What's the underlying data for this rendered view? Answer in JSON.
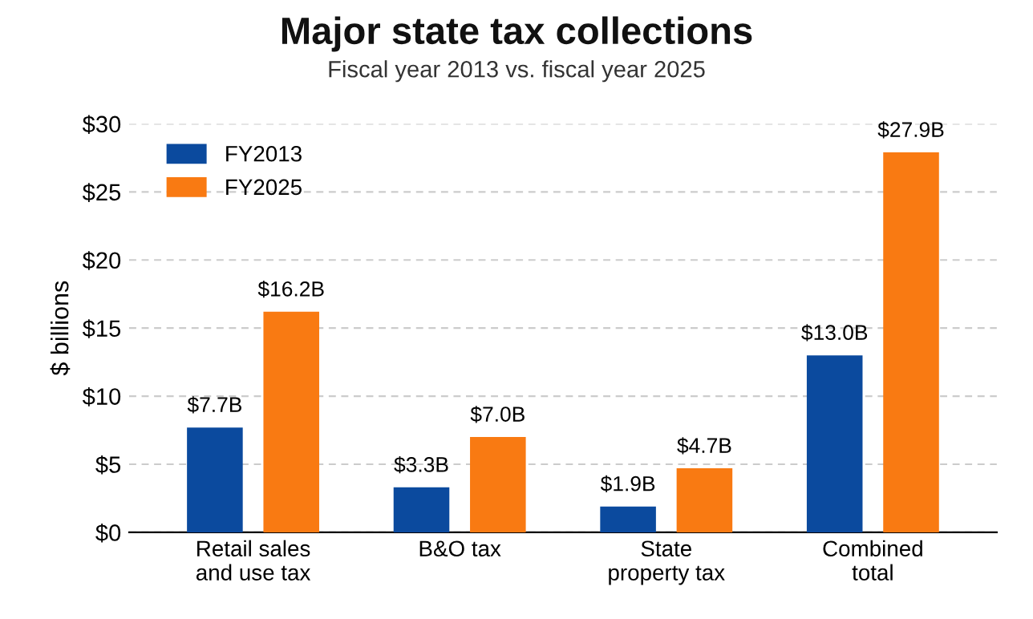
{
  "chart_data": {
    "type": "bar",
    "title": "Major state tax collections",
    "subtitle": "Fiscal year 2013 vs. fiscal year 2025",
    "ylabel": "$ billions",
    "categories": [
      "Retail sales\nand use tax",
      "B&O tax",
      "State\nproperty tax",
      "Combined\ntotal"
    ],
    "series": [
      {
        "name": "FY2013",
        "color": "#0b4a9e",
        "values": [
          7.7,
          3.3,
          1.9,
          13.0
        ],
        "value_labels": [
          "$7.7B",
          "$3.3B",
          "$1.9B",
          "$13.0B"
        ]
      },
      {
        "name": "FY2025",
        "color": "#f97a12",
        "values": [
          16.2,
          7.0,
          4.7,
          27.9
        ],
        "value_labels": [
          "$16.2B",
          "$7.0B",
          "$4.7B",
          "$27.9B"
        ]
      }
    ],
    "ylim": [
      0,
      30
    ],
    "yticks": [
      {
        "value": 0,
        "label": "$0"
      },
      {
        "value": 5,
        "label": "$5"
      },
      {
        "value": 10,
        "label": "$10"
      },
      {
        "value": 15,
        "label": "$15"
      },
      {
        "value": 20,
        "label": "$20"
      },
      {
        "value": 25,
        "label": "$25"
      },
      {
        "value": 30,
        "label": "$30"
      }
    ],
    "grid": "y",
    "legend": "top left"
  }
}
